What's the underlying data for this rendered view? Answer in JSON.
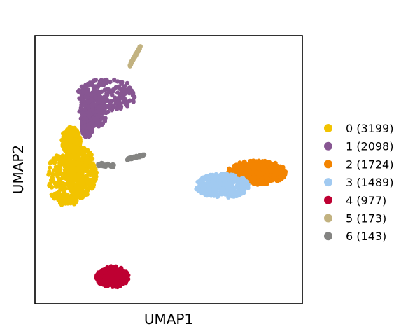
{
  "chart_data": {
    "type": "scatter",
    "title": "",
    "xlabel": "UMAP1",
    "ylabel": "UMAP2",
    "xlim": [
      0,
      10
    ],
    "ylim": [
      0,
      10
    ],
    "xticks": [],
    "yticks": [],
    "grid": false,
    "legend": {
      "placement": "right",
      "frame": false
    },
    "series": [
      {
        "name": "0 (3199)",
        "color": "#f2c300",
        "count": 3199,
        "regions": [
          {
            "type": "ellipse",
            "cx": 1.2,
            "cy": 4.7,
            "rx": 0.75,
            "ry": 1.05
          },
          {
            "type": "ellipse",
            "cx": 1.7,
            "cy": 4.9,
            "rx": 0.6,
            "ry": 0.95
          },
          {
            "type": "ellipse",
            "cx": 1.35,
            "cy": 6.1,
            "rx": 0.35,
            "ry": 0.5
          }
        ]
      },
      {
        "name": "1 (2098)",
        "color": "#875692",
        "count": 2098,
        "regions": [
          {
            "type": "ellipse",
            "cx": 2.7,
            "cy": 7.8,
            "rx": 1.1,
            "ry": 0.6
          },
          {
            "type": "ellipse",
            "cx": 2.2,
            "cy": 7.2,
            "rx": 0.55,
            "ry": 0.65
          },
          {
            "type": "ellipse",
            "cx": 1.95,
            "cy": 6.6,
            "rx": 0.2,
            "ry": 0.4
          }
        ]
      },
      {
        "name": "2 (1724)",
        "color": "#f38400",
        "count": 1724,
        "regions": [
          {
            "type": "ellipse",
            "cx": 8.3,
            "cy": 4.9,
            "rx": 1.1,
            "ry": 0.45
          }
        ]
      },
      {
        "name": "3 (1489)",
        "color": "#a1caf1",
        "count": 1489,
        "regions": [
          {
            "type": "ellipse",
            "cx": 7.0,
            "cy": 4.4,
            "rx": 1.0,
            "ry": 0.45
          }
        ]
      },
      {
        "name": "4 (977)",
        "color": "#be0032",
        "count": 977,
        "regions": [
          {
            "type": "ellipse",
            "cx": 2.9,
            "cy": 1.0,
            "rx": 0.6,
            "ry": 0.4
          }
        ]
      },
      {
        "name": "5 (173)",
        "color": "#c2b280",
        "count": 173,
        "regions": [
          {
            "type": "line",
            "x1": 3.55,
            "y1": 8.9,
            "x2": 3.95,
            "y2": 9.6,
            "w": 0.1
          }
        ]
      },
      {
        "name": "6 (143)",
        "color": "#848482",
        "count": 143,
        "regions": [
          {
            "type": "line",
            "x1": 2.35,
            "y1": 5.2,
            "x2": 2.95,
            "y2": 5.15,
            "w": 0.12
          },
          {
            "type": "line",
            "x1": 3.45,
            "y1": 5.4,
            "x2": 4.1,
            "y2": 5.55,
            "w": 0.08
          }
        ]
      }
    ]
  }
}
